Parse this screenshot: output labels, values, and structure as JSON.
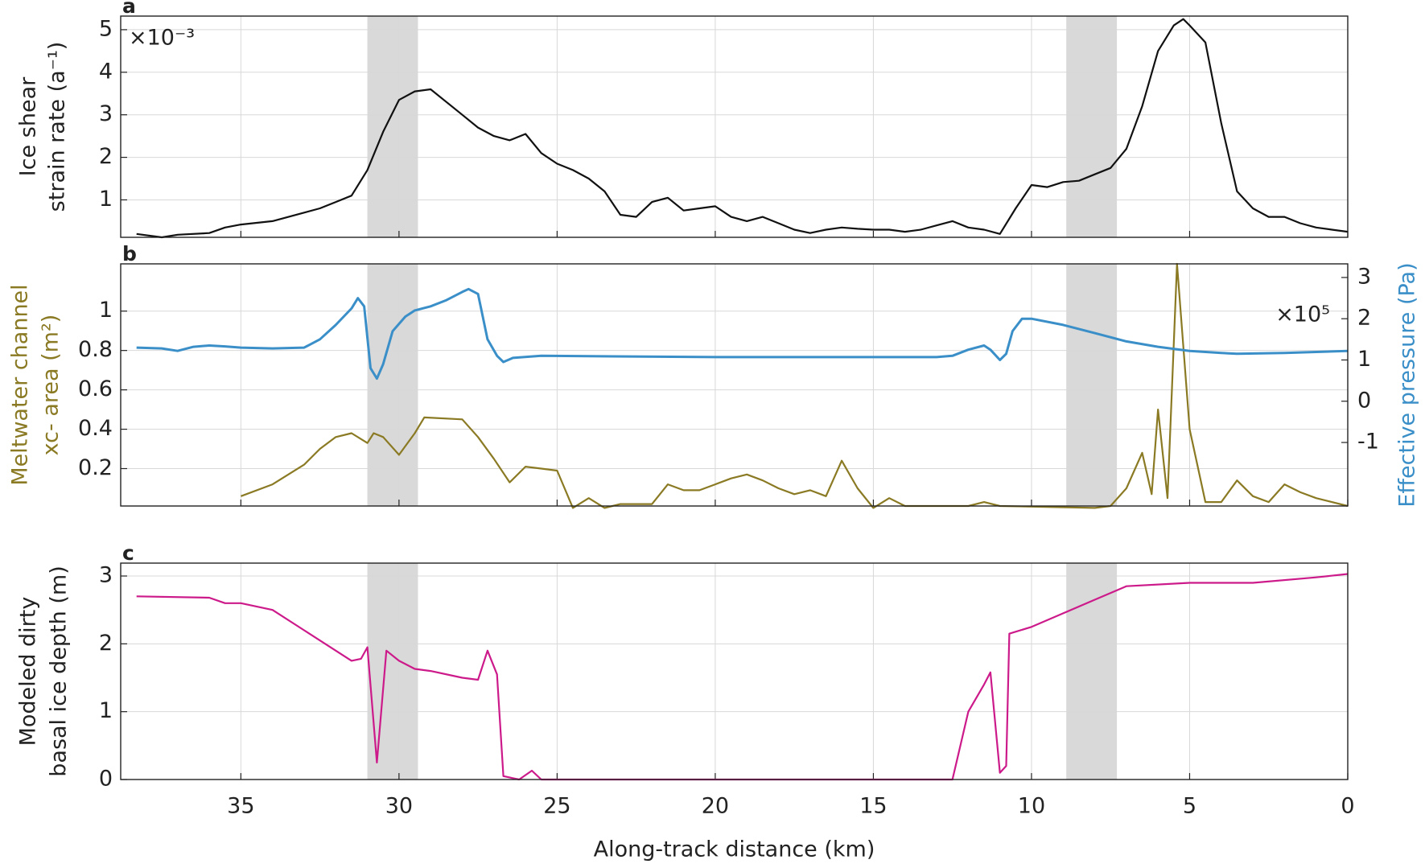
{
  "chart_data": [
    {
      "type": "line",
      "letter": "a",
      "ylabel": [
        "Ice shear",
        "strain rate (a⁻¹)"
      ],
      "annotation": "×10⁻³",
      "xlim": [
        38.8,
        0
      ],
      "xticks": [
        35,
        30,
        25,
        20,
        15,
        10,
        5,
        0
      ],
      "ylim": [
        0.12,
        5.32
      ],
      "yticks": [
        1,
        2,
        3,
        4,
        5
      ],
      "grid": true,
      "shaded": [
        [
          31,
          29.4
        ],
        [
          8.9,
          7.3
        ]
      ],
      "shade_color": "#d9d9d9",
      "series": [
        {
          "color": "#111111",
          "x": [
            38.3,
            37.5,
            37,
            36,
            35.5,
            35,
            34,
            33,
            32.5,
            32,
            31.5,
            31,
            30.5,
            30,
            29.5,
            29,
            28.5,
            28,
            27.5,
            27,
            26.5,
            26,
            25.5,
            25,
            24.5,
            24,
            23.5,
            23,
            22.5,
            22,
            21.5,
            21,
            20.5,
            20,
            19.5,
            19,
            18.5,
            18,
            17.5,
            17,
            16.5,
            16,
            15.5,
            15,
            14.5,
            14,
            13.5,
            13,
            12.5,
            12,
            11.5,
            11,
            10.5,
            10,
            9.5,
            9,
            8.5,
            8,
            7.5,
            7,
            6.5,
            6,
            5.5,
            5.2,
            5,
            4.5,
            4,
            3.5,
            3,
            2.5,
            2,
            1.5,
            1,
            0.5,
            0
          ],
          "values": [
            0.2,
            0.12,
            0.18,
            0.22,
            0.35,
            0.42,
            0.5,
            0.7,
            0.8,
            0.95,
            1.1,
            1.7,
            2.6,
            3.35,
            3.55,
            3.6,
            3.3,
            3.0,
            2.7,
            2.5,
            2.4,
            2.55,
            2.1,
            1.85,
            1.7,
            1.5,
            1.2,
            0.65,
            0.6,
            0.95,
            1.05,
            0.75,
            0.8,
            0.85,
            0.6,
            0.5,
            0.6,
            0.45,
            0.3,
            0.22,
            0.3,
            0.35,
            0.32,
            0.3,
            0.3,
            0.25,
            0.3,
            0.4,
            0.5,
            0.35,
            0.3,
            0.2,
            0.8,
            1.35,
            1.3,
            1.42,
            1.45,
            1.6,
            1.75,
            2.2,
            3.2,
            4.5,
            5.1,
            5.25,
            5.1,
            4.7,
            2.8,
            1.2,
            0.8,
            0.6,
            0.6,
            0.45,
            0.35,
            0.3,
            0.25
          ]
        }
      ]
    },
    {
      "type": "line",
      "letter": "b",
      "ylabel": [
        "Meltwater channel",
        "xc- area (m²)"
      ],
      "ylabel_color": "#8b7a24",
      "y2label": "Effective pressure (Pa)",
      "y2label_color": "#3b8fc8",
      "annotation": "×10⁵",
      "xlim": [
        38.8,
        0
      ],
      "xticks": [
        35,
        30,
        25,
        20,
        15,
        10,
        5,
        0
      ],
      "ylim": [
        0.01,
        1.24
      ],
      "yticks": [
        0.2,
        0.4,
        0.6,
        0.8,
        1
      ],
      "y2lim": [
        -2.54,
        3.33
      ],
      "y2ticks": [
        -1,
        0,
        1,
        2,
        3
      ],
      "grid": true,
      "shaded": [
        [
          31,
          29.4
        ],
        [
          8.9,
          7.3
        ]
      ],
      "shade_color": "#d9d9d9",
      "series": [
        {
          "color": "#8b7a24",
          "x": [
            35,
            34,
            33,
            32.5,
            32,
            31.5,
            31,
            30.8,
            30.5,
            30,
            29.5,
            29.2,
            28,
            27.5,
            27,
            26.5,
            26,
            25.5,
            25,
            24.5,
            24,
            23.5,
            23,
            22,
            21.5,
            21,
            20.5,
            20,
            19.5,
            19,
            18.5,
            18,
            17.5,
            17,
            16.5,
            16,
            15.5,
            15,
            14.5,
            14,
            12,
            11.5,
            11,
            8,
            7.5,
            7,
            6.5,
            6.2,
            6,
            5.7,
            5.4,
            5,
            4.5,
            4,
            3.5,
            3,
            2.5,
            2,
            1.5,
            1,
            0
          ],
          "values": [
            0.06,
            0.12,
            0.22,
            0.3,
            0.36,
            0.38,
            0.33,
            0.38,
            0.36,
            0.27,
            0.38,
            0.46,
            0.45,
            0.36,
            0.25,
            0.13,
            0.21,
            0.2,
            0.19,
            0.0,
            0.05,
            0.0,
            0.02,
            0.02,
            0.12,
            0.09,
            0.09,
            0.12,
            0.15,
            0.17,
            0.14,
            0.1,
            0.07,
            0.09,
            0.06,
            0.24,
            0.1,
            0.0,
            0.05,
            0.01,
            0.01,
            0.03,
            0.01,
            0.0,
            0.01,
            0.1,
            0.28,
            0.07,
            0.5,
            0.05,
            1.24,
            0.4,
            0.03,
            0.03,
            0.14,
            0.06,
            0.03,
            0.12,
            0.08,
            0.05,
            0.01
          ]
        },
        {
          "color": "#3b8fc8",
          "axis": "y2",
          "x": [
            38.3,
            37.5,
            37,
            36.5,
            36,
            35.5,
            35,
            34,
            33,
            32.5,
            32,
            31.5,
            31.3,
            31.1,
            30.9,
            30.7,
            30.5,
            30.2,
            29.8,
            29.5,
            29,
            28.5,
            28,
            27.8,
            27.5,
            27.2,
            26.9,
            26.7,
            26.4,
            25.5,
            20,
            13,
            12.5,
            12,
            11.5,
            11.3,
            11,
            10.8,
            10.6,
            10.3,
            10,
            9,
            8,
            7,
            6,
            5,
            4,
            3.5,
            2,
            0
          ],
          "values": [
            1.3,
            1.28,
            1.22,
            1.32,
            1.35,
            1.33,
            1.3,
            1.28,
            1.3,
            1.5,
            1.85,
            2.25,
            2.5,
            2.3,
            0.8,
            0.55,
            0.9,
            1.7,
            2.05,
            2.2,
            2.3,
            2.45,
            2.65,
            2.72,
            2.6,
            1.5,
            1.1,
            0.95,
            1.05,
            1.1,
            1.07,
            1.07,
            1.1,
            1.25,
            1.35,
            1.25,
            1.0,
            1.15,
            1.7,
            2.0,
            2.0,
            1.85,
            1.65,
            1.45,
            1.32,
            1.22,
            1.17,
            1.15,
            1.17,
            1.22
          ]
        }
      ]
    },
    {
      "type": "line",
      "letter": "c",
      "ylabel": [
        "Modeled dirty",
        "basal ice depth (m)"
      ],
      "xlabel": "Along-track distance (km)",
      "xlim": [
        38.8,
        0
      ],
      "xticks": [
        35,
        30,
        25,
        20,
        15,
        10,
        5,
        0
      ],
      "ylim": [
        0,
        3.19
      ],
      "yticks": [
        0,
        1,
        2,
        3
      ],
      "grid": true,
      "shaded": [
        [
          31,
          29.4
        ],
        [
          8.9,
          7.3
        ]
      ],
      "shade_color": "#d9d9d9",
      "series": [
        {
          "color": "#cc1a8a",
          "x": [
            38.3,
            36,
            35.5,
            35,
            34,
            33,
            32,
            31.5,
            31.2,
            31,
            30.7,
            30.4,
            30,
            29.5,
            29,
            28,
            27.5,
            27.2,
            26.9,
            26.7,
            26.2,
            25.8,
            25.5,
            12.5,
            12.3,
            12,
            11.5,
            11.3,
            11,
            10.8,
            10.7,
            10,
            9,
            8,
            7,
            5,
            3,
            1,
            0
          ],
          "values": [
            2.7,
            2.68,
            2.6,
            2.6,
            2.5,
            2.2,
            1.9,
            1.75,
            1.78,
            1.95,
            0.25,
            1.9,
            1.75,
            1.63,
            1.6,
            1.5,
            1.47,
            1.9,
            1.55,
            0.05,
            0.0,
            0.13,
            0.0,
            0.0,
            0.4,
            1.0,
            1.4,
            1.58,
            0.1,
            0.2,
            2.15,
            2.25,
            2.45,
            2.65,
            2.85,
            2.9,
            2.9,
            2.98,
            3.03
          ]
        }
      ]
    }
  ]
}
